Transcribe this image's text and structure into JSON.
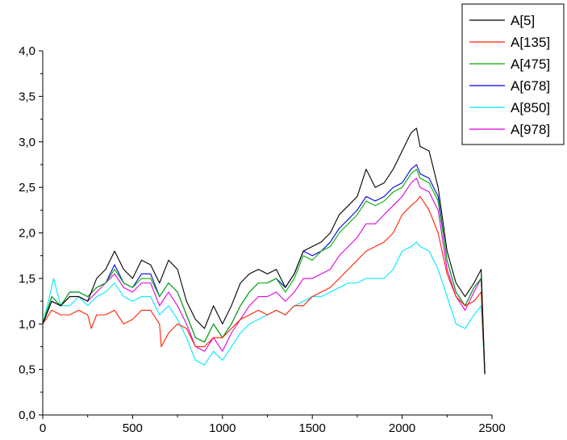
{
  "chart_data": {
    "type": "line",
    "title": "",
    "xlabel": "",
    "ylabel": "",
    "xlim": [
      0,
      2500
    ],
    "ylim": [
      0.0,
      4.0
    ],
    "x_ticks": [
      0,
      500,
      1000,
      1500,
      2000,
      2500
    ],
    "x_tick_labels": [
      "0",
      "500",
      "1000",
      "1500",
      "2000",
      "2500"
    ],
    "y_ticks": [
      0.0,
      0.5,
      1.0,
      1.5,
      2.0,
      2.5,
      3.0,
      3.5,
      4.0
    ],
    "y_tick_labels": [
      "0,0",
      "0,5",
      "1,0",
      "1,5",
      "2,0",
      "2,5",
      "3,0",
      "3,5",
      "4,0"
    ],
    "grid": false,
    "legend_position": "top-right",
    "series": [
      {
        "name": "A[5]",
        "color": "#000000",
        "x": [
          0,
          50,
          100,
          150,
          200,
          250,
          300,
          350,
          400,
          450,
          500,
          550,
          600,
          650,
          700,
          750,
          800,
          850,
          900,
          950,
          1000,
          1050,
          1100,
          1150,
          1200,
          1250,
          1300,
          1350,
          1400,
          1450,
          1500,
          1550,
          1600,
          1650,
          1700,
          1750,
          1800,
          1850,
          1900,
          1950,
          2000,
          2050,
          2080,
          2100,
          2150,
          2200,
          2250,
          2300,
          2350,
          2400,
          2440,
          2460
        ],
        "values": [
          1.0,
          1.25,
          1.2,
          1.3,
          1.3,
          1.25,
          1.5,
          1.6,
          1.8,
          1.6,
          1.5,
          1.7,
          1.65,
          1.45,
          1.7,
          1.6,
          1.25,
          1.05,
          0.95,
          1.2,
          1.0,
          1.2,
          1.45,
          1.55,
          1.6,
          1.55,
          1.6,
          1.4,
          1.55,
          1.8,
          1.85,
          1.9,
          2.0,
          2.2,
          2.3,
          2.4,
          2.7,
          2.5,
          2.55,
          2.7,
          2.9,
          3.1,
          3.15,
          2.95,
          2.9,
          2.5,
          1.8,
          1.45,
          1.3,
          1.45,
          1.6,
          0.45
        ]
      },
      {
        "name": "A[135]",
        "color": "#ff2000",
        "x": [
          0,
          50,
          100,
          150,
          200,
          250,
          270,
          300,
          350,
          400,
          450,
          500,
          550,
          600,
          650,
          660,
          700,
          750,
          800,
          850,
          900,
          950,
          1000,
          1050,
          1100,
          1150,
          1200,
          1250,
          1300,
          1350,
          1400,
          1450,
          1500,
          1550,
          1600,
          1650,
          1700,
          1750,
          1800,
          1850,
          1900,
          1950,
          2000,
          2050,
          2080,
          2100,
          2150,
          2200,
          2250,
          2300,
          2350,
          2400,
          2440,
          2460
        ],
        "values": [
          1.0,
          1.15,
          1.1,
          1.1,
          1.15,
          1.1,
          0.95,
          1.1,
          1.1,
          1.15,
          1.0,
          1.05,
          1.15,
          1.15,
          1.0,
          0.75,
          0.9,
          1.0,
          0.95,
          0.75,
          0.75,
          0.85,
          0.85,
          0.95,
          1.05,
          1.1,
          1.15,
          1.1,
          1.15,
          1.1,
          1.2,
          1.2,
          1.3,
          1.35,
          1.4,
          1.5,
          1.6,
          1.7,
          1.8,
          1.85,
          1.9,
          2.0,
          2.2,
          2.3,
          2.35,
          2.4,
          2.25,
          2.0,
          1.55,
          1.3,
          1.2,
          1.25,
          1.35,
          0.45
        ]
      },
      {
        "name": "A[475]",
        "color": "#00b000",
        "x": [
          0,
          50,
          100,
          150,
          200,
          250,
          300,
          350,
          400,
          450,
          500,
          550,
          600,
          650,
          700,
          750,
          800,
          850,
          900,
          950,
          1000,
          1050,
          1100,
          1150,
          1200,
          1250,
          1300,
          1350,
          1400,
          1450,
          1500,
          1550,
          1600,
          1650,
          1700,
          1750,
          1800,
          1850,
          1900,
          1950,
          2000,
          2050,
          2080,
          2100,
          2150,
          2200,
          2250,
          2300,
          2350,
          2400,
          2440,
          2460
        ],
        "values": [
          1.0,
          1.3,
          1.2,
          1.35,
          1.35,
          1.3,
          1.4,
          1.45,
          1.6,
          1.45,
          1.4,
          1.5,
          1.5,
          1.3,
          1.45,
          1.35,
          1.1,
          0.85,
          0.8,
          1.0,
          0.85,
          1.0,
          1.2,
          1.35,
          1.45,
          1.45,
          1.5,
          1.35,
          1.5,
          1.75,
          1.7,
          1.8,
          1.85,
          2.0,
          2.1,
          2.2,
          2.35,
          2.3,
          2.35,
          2.45,
          2.5,
          2.65,
          2.7,
          2.6,
          2.55,
          2.35,
          1.7,
          1.35,
          1.2,
          1.4,
          1.5,
          0.45
        ]
      },
      {
        "name": "A[678]",
        "color": "#0000e0",
        "x": [
          0,
          50,
          100,
          150,
          200,
          250,
          300,
          350,
          400,
          450,
          500,
          550,
          600,
          650,
          700,
          750,
          800,
          850,
          900,
          950,
          1000,
          1050,
          1100,
          1150,
          1200,
          1250,
          1300,
          1350,
          1400,
          1450,
          1500,
          1550,
          1600,
          1650,
          1700,
          1750,
          1800,
          1850,
          1900,
          1950,
          2000,
          2050,
          2080,
          2100,
          2150,
          2200,
          2250,
          2300,
          2350,
          2400,
          2440,
          2460
        ],
        "values": [
          1.0,
          1.3,
          1.2,
          1.35,
          1.35,
          1.3,
          1.4,
          1.45,
          1.65,
          1.45,
          1.4,
          1.55,
          1.55,
          1.3,
          1.45,
          1.35,
          1.1,
          0.85,
          0.8,
          1.0,
          0.85,
          1.0,
          1.2,
          1.35,
          1.45,
          1.45,
          1.5,
          1.4,
          1.55,
          1.8,
          1.75,
          1.8,
          1.9,
          2.05,
          2.15,
          2.25,
          2.4,
          2.35,
          2.4,
          2.5,
          2.55,
          2.7,
          2.75,
          2.65,
          2.6,
          2.4,
          1.7,
          1.35,
          1.2,
          1.4,
          1.5,
          0.45
        ]
      },
      {
        "name": "A[850]",
        "color": "#00e8ff",
        "x": [
          0,
          50,
          60,
          100,
          150,
          200,
          250,
          300,
          350,
          400,
          450,
          500,
          550,
          600,
          650,
          700,
          750,
          800,
          850,
          900,
          950,
          1000,
          1050,
          1100,
          1150,
          1200,
          1250,
          1300,
          1350,
          1400,
          1450,
          1500,
          1550,
          1600,
          1650,
          1700,
          1750,
          1800,
          1850,
          1900,
          1950,
          2000,
          2050,
          2080,
          2100,
          2150,
          2200,
          2250,
          2300,
          2350,
          2400,
          2440,
          2460
        ],
        "values": [
          1.0,
          1.4,
          1.5,
          1.2,
          1.2,
          1.3,
          1.2,
          1.3,
          1.35,
          1.45,
          1.3,
          1.25,
          1.3,
          1.3,
          1.1,
          1.2,
          1.05,
          0.85,
          0.6,
          0.55,
          0.7,
          0.6,
          0.75,
          0.9,
          1.0,
          1.05,
          1.1,
          1.15,
          1.1,
          1.2,
          1.25,
          1.3,
          1.3,
          1.35,
          1.4,
          1.45,
          1.45,
          1.5,
          1.5,
          1.5,
          1.6,
          1.8,
          1.85,
          1.9,
          1.85,
          1.8,
          1.6,
          1.3,
          1.0,
          0.95,
          1.1,
          1.2,
          0.45
        ]
      },
      {
        "name": "A[978]",
        "color": "#e000e0",
        "x": [
          0,
          50,
          100,
          150,
          200,
          250,
          300,
          350,
          400,
          450,
          500,
          550,
          600,
          650,
          700,
          750,
          800,
          850,
          900,
          950,
          1000,
          1050,
          1100,
          1150,
          1200,
          1250,
          1300,
          1350,
          1400,
          1450,
          1500,
          1550,
          1600,
          1650,
          1700,
          1750,
          1800,
          1850,
          1900,
          1950,
          2000,
          2050,
          2080,
          2100,
          2150,
          2200,
          2250,
          2300,
          2350,
          2400,
          2440,
          2460
        ],
        "values": [
          1.0,
          1.25,
          1.2,
          1.3,
          1.3,
          1.25,
          1.35,
          1.45,
          1.55,
          1.4,
          1.35,
          1.45,
          1.45,
          1.2,
          1.35,
          1.2,
          1.0,
          0.75,
          0.7,
          0.85,
          0.7,
          0.9,
          1.05,
          1.2,
          1.3,
          1.3,
          1.35,
          1.25,
          1.35,
          1.5,
          1.5,
          1.55,
          1.6,
          1.75,
          1.85,
          1.95,
          2.1,
          2.1,
          2.2,
          2.3,
          2.4,
          2.55,
          2.6,
          2.5,
          2.45,
          2.25,
          1.6,
          1.3,
          1.15,
          1.35,
          1.5,
          0.45
        ]
      }
    ]
  }
}
